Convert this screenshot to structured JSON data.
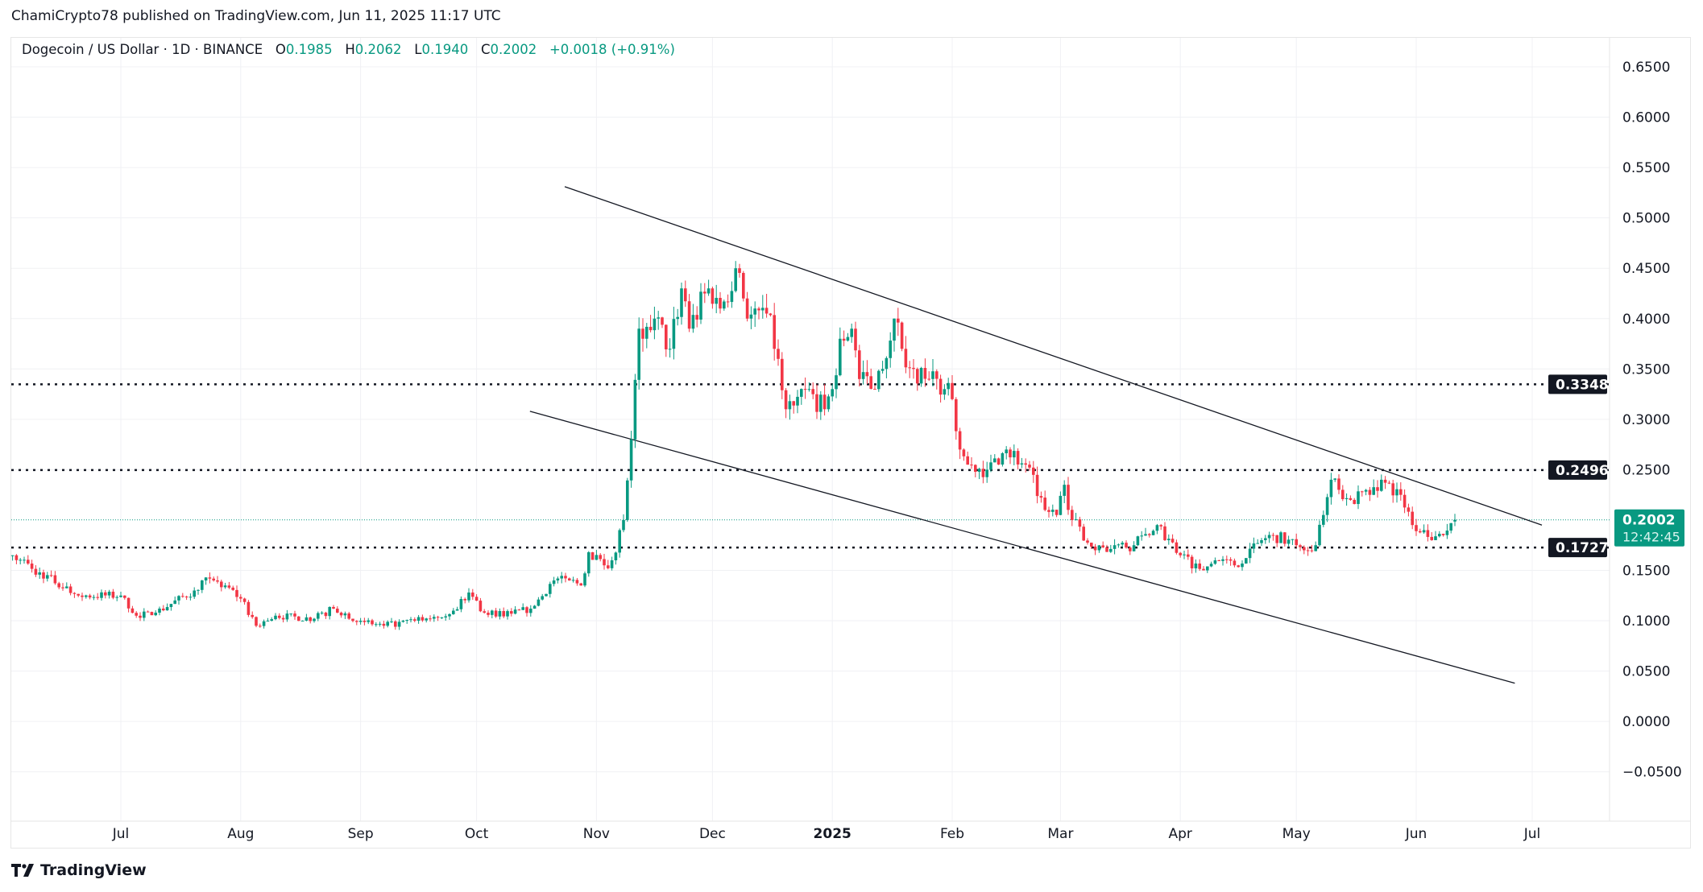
{
  "publisher_line": "ChamiCrypto78 published on TradingView.com, Jun 11, 2025 11:17 UTC",
  "legend": {
    "symbol": "Dogecoin / US Dollar · 1D · BINANCE",
    "o_label": "O",
    "o": "0.1985",
    "h_label": "H",
    "h": "0.2062",
    "l_label": "L",
    "l": "0.1940",
    "c_label": "C",
    "c": "0.2002",
    "change": "+0.0018 (+0.91%)"
  },
  "logo_text": "TradingView",
  "colors": {
    "up": "#089981",
    "down": "#f23645",
    "grid": "#f0f3fa",
    "level": "#131722",
    "last": "#089981"
  },
  "chart_data": {
    "type": "candlestick",
    "title": "Dogecoin / US Dollar · 1D · BINANCE",
    "x_origin": "2024-07-01",
    "x_unit": "days since 2024-07-01",
    "ylim": [
      -0.075,
      0.68
    ],
    "y_ticks": [
      0.65,
      0.6,
      0.55,
      0.5,
      0.45,
      0.4,
      0.35,
      0.3,
      0.25,
      0.15,
      0.1,
      0.05,
      0.0,
      -0.05
    ],
    "y_tick_labels": [
      "0.6500",
      "0.6000",
      "0.5500",
      "0.5000",
      "0.4500",
      "0.4000",
      "0.3500",
      "0.3000",
      "0.2500",
      "0.1500",
      "0.1000",
      "0.0500",
      "0.0000",
      "−0.0500"
    ],
    "x_ticks": [
      {
        "label": "Jul",
        "day": 0
      },
      {
        "label": "Aug",
        "day": 31
      },
      {
        "label": "Sep",
        "day": 62
      },
      {
        "label": "Oct",
        "day": 92
      },
      {
        "label": "Nov",
        "day": 123
      },
      {
        "label": "Dec",
        "day": 153
      },
      {
        "label": "2025",
        "day": 184
      },
      {
        "label": "Feb",
        "day": 215
      },
      {
        "label": "Mar",
        "day": 243
      },
      {
        "label": "Apr",
        "day": 274
      },
      {
        "label": "May",
        "day": 304
      },
      {
        "label": "Jun",
        "day": 335
      },
      {
        "label": "Jul",
        "day": 365
      }
    ],
    "close_keypoints": [
      [
        -28,
        0.165
      ],
      [
        -21,
        0.148
      ],
      [
        -11,
        0.125
      ],
      [
        0,
        0.125
      ],
      [
        4,
        0.105
      ],
      [
        9,
        0.108
      ],
      [
        19,
        0.13
      ],
      [
        21,
        0.14
      ],
      [
        27,
        0.135
      ],
      [
        31,
        0.122
      ],
      [
        35,
        0.095
      ],
      [
        40,
        0.105
      ],
      [
        50,
        0.102
      ],
      [
        55,
        0.112
      ],
      [
        62,
        0.1
      ],
      [
        68,
        0.095
      ],
      [
        76,
        0.1
      ],
      [
        86,
        0.11
      ],
      [
        90,
        0.128
      ],
      [
        94,
        0.108
      ],
      [
        101,
        0.107
      ],
      [
        106,
        0.112
      ],
      [
        112,
        0.14
      ],
      [
        116,
        0.14
      ],
      [
        119,
        0.135
      ],
      [
        121,
        0.168
      ],
      [
        125,
        0.155
      ],
      [
        127,
        0.16
      ],
      [
        130,
        0.2
      ],
      [
        132,
        0.28
      ],
      [
        134,
        0.39
      ],
      [
        135,
        0.38
      ],
      [
        138,
        0.4
      ],
      [
        142,
        0.37
      ],
      [
        145,
        0.43
      ],
      [
        147,
        0.39
      ],
      [
        152,
        0.43
      ],
      [
        155,
        0.41
      ],
      [
        159,
        0.45
      ],
      [
        161,
        0.42
      ],
      [
        162,
        0.4
      ],
      [
        167,
        0.405
      ],
      [
        170,
        0.36
      ],
      [
        172,
        0.31
      ],
      [
        177,
        0.33
      ],
      [
        182,
        0.31
      ],
      [
        184,
        0.33
      ],
      [
        186,
        0.38
      ],
      [
        189,
        0.39
      ],
      [
        191,
        0.34
      ],
      [
        195,
        0.33
      ],
      [
        197,
        0.35
      ],
      [
        200,
        0.4
      ],
      [
        202,
        0.37
      ],
      [
        205,
        0.35
      ],
      [
        209,
        0.34
      ],
      [
        213,
        0.33
      ],
      [
        215,
        0.32
      ],
      [
        217,
        0.27
      ],
      [
        219,
        0.255
      ],
      [
        224,
        0.25
      ],
      [
        229,
        0.27
      ],
      [
        234,
        0.255
      ],
      [
        239,
        0.21
      ],
      [
        242,
        0.205
      ],
      [
        244,
        0.235
      ],
      [
        246,
        0.2
      ],
      [
        252,
        0.17
      ],
      [
        257,
        0.175
      ],
      [
        262,
        0.175
      ],
      [
        268,
        0.195
      ],
      [
        270,
        0.18
      ],
      [
        274,
        0.165
      ],
      [
        280,
        0.15
      ],
      [
        283,
        0.16
      ],
      [
        288,
        0.155
      ],
      [
        295,
        0.18
      ],
      [
        298,
        0.185
      ],
      [
        304,
        0.175
      ],
      [
        309,
        0.175
      ],
      [
        311,
        0.205
      ],
      [
        313,
        0.24
      ],
      [
        315,
        0.23
      ],
      [
        318,
        0.22
      ],
      [
        323,
        0.225
      ],
      [
        326,
        0.24
      ],
      [
        331,
        0.225
      ],
      [
        334,
        0.195
      ],
      [
        337,
        0.19
      ],
      [
        339,
        0.18
      ],
      [
        342,
        0.185
      ],
      [
        345,
        0.2002
      ]
    ],
    "trendlines": [
      {
        "name": "upper-channel",
        "from": [
          114.8,
          0.531
        ],
        "to": [
          367.5,
          0.195
        ]
      },
      {
        "name": "lower-channel",
        "from": [
          105.8,
          0.308
        ],
        "to": [
          360.5,
          0.038
        ]
      }
    ],
    "levels": [
      {
        "value": 0.3348,
        "label": "0.3348"
      },
      {
        "value": 0.2496,
        "label": "0.2496"
      },
      {
        "value": 0.1727,
        "label": "0.1727"
      }
    ],
    "last_price": {
      "value": 0.2002,
      "label": "0.2002",
      "countdown": "12:42:45"
    }
  }
}
